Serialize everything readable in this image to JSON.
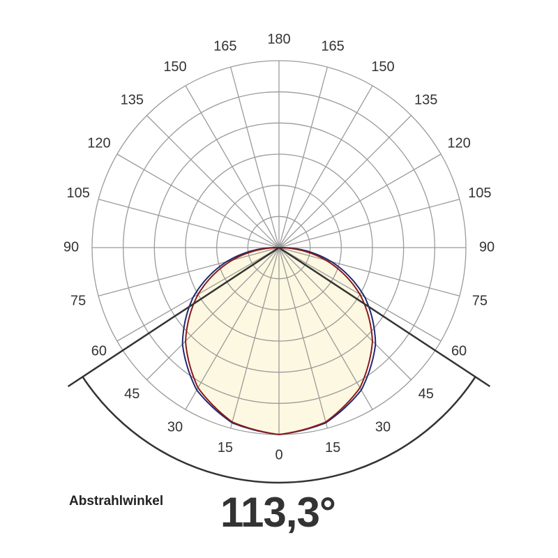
{
  "chart_data": {
    "type": "polar",
    "title": "",
    "angle_labels_left": [
      "0",
      "15",
      "30",
      "45",
      "60",
      "75",
      "90",
      "105",
      "120",
      "135",
      "150",
      "165",
      "180"
    ],
    "angle_labels_right": [
      "15",
      "30",
      "45",
      "60",
      "75",
      "90",
      "105",
      "120",
      "135",
      "150",
      "165"
    ],
    "angle_range_deg": [
      0,
      180
    ],
    "angle_step_deg": 15,
    "radial_rings": 6,
    "grid": true,
    "beam_angle_deg": 113.3,
    "series": [
      {
        "color": "#8b1a1a",
        "angles_deg": [
          0,
          15,
          30,
          45,
          60,
          75,
          90
        ],
        "relative_intensity": [
          1.0,
          0.966,
          0.866,
          0.707,
          0.5,
          0.259,
          0.0
        ]
      },
      {
        "color": "#1f2a6e",
        "angles_deg": [
          0,
          15,
          30,
          45,
          60,
          75,
          90
        ],
        "relative_intensity": [
          1.0,
          0.97,
          0.88,
          0.73,
          0.53,
          0.29,
          0.03
        ]
      }
    ],
    "fill_color": "#fdf8e1"
  },
  "beam": {
    "label": "Abstrahlwinkel",
    "value": "113,3°"
  }
}
